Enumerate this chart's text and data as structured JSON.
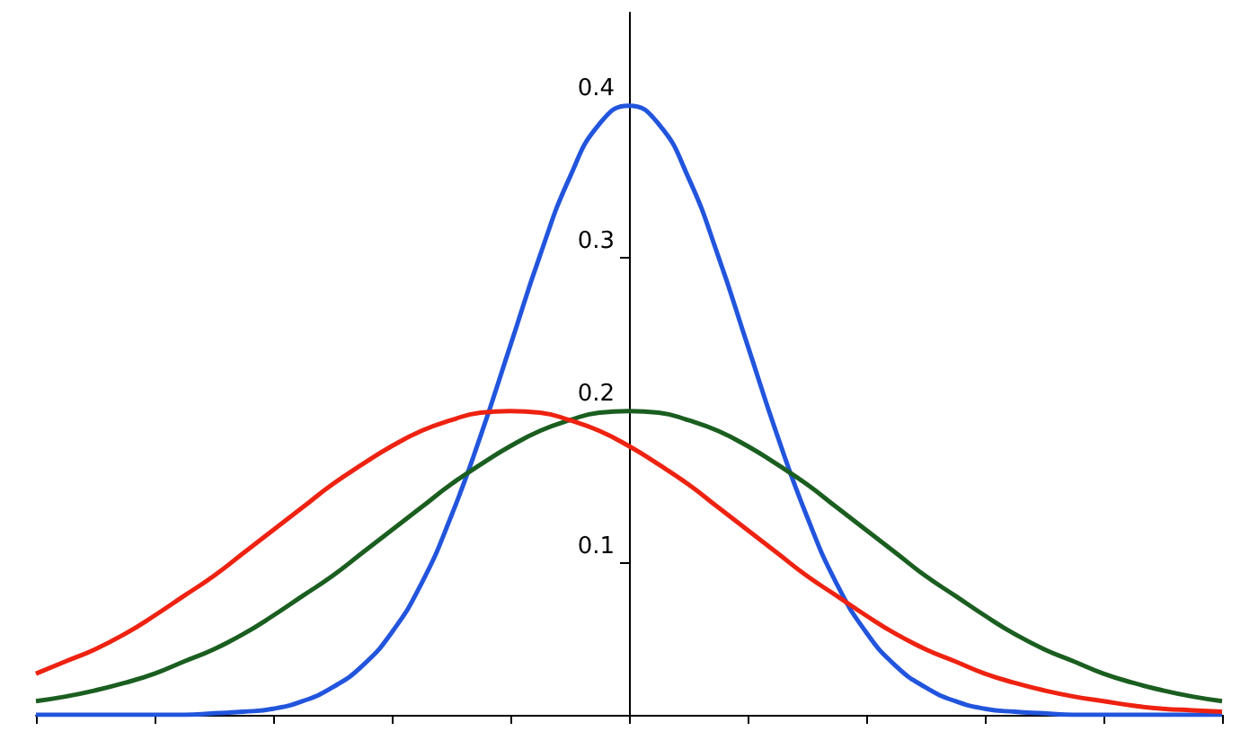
{
  "chart_data": {
    "type": "line",
    "categories": [
      null,
      null,
      null,
      null,
      null,
      null,
      null,
      null,
      null,
      null,
      null,
      null,
      null,
      null,
      null,
      null,
      null,
      null,
      null,
      null,
      null,
      null,
      null,
      null,
      null,
      null,
      null,
      null,
      null,
      null,
      null,
      null,
      null,
      null,
      null,
      null,
      null,
      null,
      null,
      null,
      null
    ],
    "series": [
      {
        "color": "#2255dd",
        "values": [
          0,
          0,
          0,
          0,
          0,
          0,
          0.001,
          0.002,
          0.004,
          0.009,
          0.018,
          0.032,
          0.054,
          0.086,
          0.13,
          0.183,
          0.242,
          0.301,
          0.352,
          0.387,
          0.399,
          0.387,
          0.352,
          0.301,
          0.242,
          0.183,
          0.13,
          0.086,
          0.054,
          0.032,
          0.018,
          0.009,
          0.004,
          0.002,
          0.001,
          0,
          0,
          0,
          0,
          0,
          0
        ]
      },
      {
        "color": "#1a5e20",
        "values": [
          0.009,
          0.012,
          0.016,
          0.021,
          0.027,
          0.035,
          0.043,
          0.053,
          0.065,
          0.078,
          0.091,
          0.106,
          0.121,
          0.136,
          0.151,
          0.164,
          0.176,
          0.186,
          0.193,
          0.198,
          0.199,
          0.198,
          0.193,
          0.186,
          0.176,
          0.164,
          0.151,
          0.136,
          0.121,
          0.106,
          0.091,
          0.078,
          0.065,
          0.053,
          0.043,
          0.035,
          0.027,
          0.021,
          0.016,
          0.012,
          0.009
        ]
      },
      {
        "color": "#ee2211",
        "values": [
          0.027,
          0.035,
          0.043,
          0.053,
          0.065,
          0.078,
          0.091,
          0.106,
          0.121,
          0.136,
          0.151,
          0.164,
          0.176,
          0.186,
          0.193,
          0.198,
          0.199,
          0.198,
          0.193,
          0.186,
          0.176,
          0.164,
          0.151,
          0.136,
          0.121,
          0.106,
          0.091,
          0.078,
          0.065,
          0.053,
          0.043,
          0.035,
          0.027,
          0.021,
          0.016,
          0.012,
          0.009,
          0.006,
          0.004,
          0.003,
          0.002
        ]
      }
    ],
    "ylim": [
      0,
      0.46
    ],
    "yticks": [
      0.1,
      0.2,
      0.3,
      0.4
    ],
    "tick_labels": "y"
  }
}
